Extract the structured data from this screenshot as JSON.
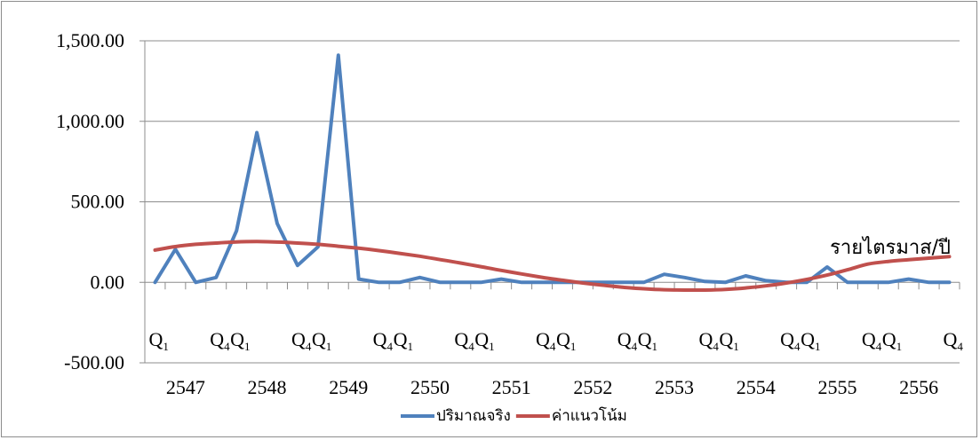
{
  "chart_data": {
    "type": "line",
    "title": "",
    "xlabel": "",
    "ylabel": "",
    "ylim": [
      -500,
      1500
    ],
    "yticks": [
      -500,
      0,
      500,
      1000,
      1500
    ],
    "ytick_labels": [
      "-500.00",
      "0.00",
      "500.00",
      "1,000.00",
      "1,500.00"
    ],
    "grid": true,
    "legend_position": "bottom",
    "quarter_labels": [
      {
        "q": "Q",
        "sub": "1",
        "index": 0
      },
      {
        "q": "Q",
        "sub": "4",
        "index": 3
      },
      {
        "q": "Q",
        "sub": "1",
        "index": 4
      },
      {
        "q": "Q",
        "sub": "4",
        "index": 7
      },
      {
        "q": "Q",
        "sub": "1",
        "index": 8
      },
      {
        "q": "Q",
        "sub": "4",
        "index": 11
      },
      {
        "q": "Q",
        "sub": "1",
        "index": 12
      },
      {
        "q": "Q",
        "sub": "4",
        "index": 15
      },
      {
        "q": "Q",
        "sub": "1",
        "index": 16
      },
      {
        "q": "Q",
        "sub": "4",
        "index": 19
      },
      {
        "q": "Q",
        "sub": "1",
        "index": 20
      },
      {
        "q": "Q",
        "sub": "4",
        "index": 23
      },
      {
        "q": "Q",
        "sub": "1",
        "index": 24
      },
      {
        "q": "Q",
        "sub": "4",
        "index": 27
      },
      {
        "q": "Q",
        "sub": "1",
        "index": 28
      },
      {
        "q": "Q",
        "sub": "4",
        "index": 31
      },
      {
        "q": "Q",
        "sub": "1",
        "index": 32
      },
      {
        "q": "Q",
        "sub": "4",
        "index": 35
      },
      {
        "q": "Q",
        "sub": "1",
        "index": 36
      },
      {
        "q": "Q",
        "sub": "4",
        "index": 39
      }
    ],
    "year_labels": [
      "2547",
      "2548",
      "2549",
      "2550",
      "2551",
      "2552",
      "2553",
      "2554",
      "2555",
      "2556"
    ],
    "annotation": "รายไตรมาส/ปี",
    "series": [
      {
        "name": "ปริมาณจริง",
        "color": "#4f81bd",
        "values": [
          0,
          205,
          0,
          30,
          320,
          930,
          365,
          105,
          220,
          1410,
          20,
          0,
          0,
          30,
          0,
          0,
          0,
          20,
          0,
          0,
          0,
          0,
          0,
          0,
          0,
          50,
          30,
          5,
          0,
          40,
          10,
          0,
          0,
          95,
          0,
          0,
          0,
          20,
          0,
          0
        ]
      },
      {
        "name": "ค่าแนวโน้ม",
        "color": "#c0504d",
        "values": [
          200,
          222,
          236,
          244,
          251,
          253,
          250,
          244,
          236,
          224,
          212,
          197,
          180,
          162,
          141,
          120,
          97,
          74,
          52,
          31,
          13,
          -4,
          -18,
          -31,
          -40,
          -46,
          -48,
          -48,
          -44,
          -35,
          -22,
          -4,
          18,
          45,
          78,
          113,
          130,
          140,
          150,
          160
        ]
      }
    ]
  }
}
